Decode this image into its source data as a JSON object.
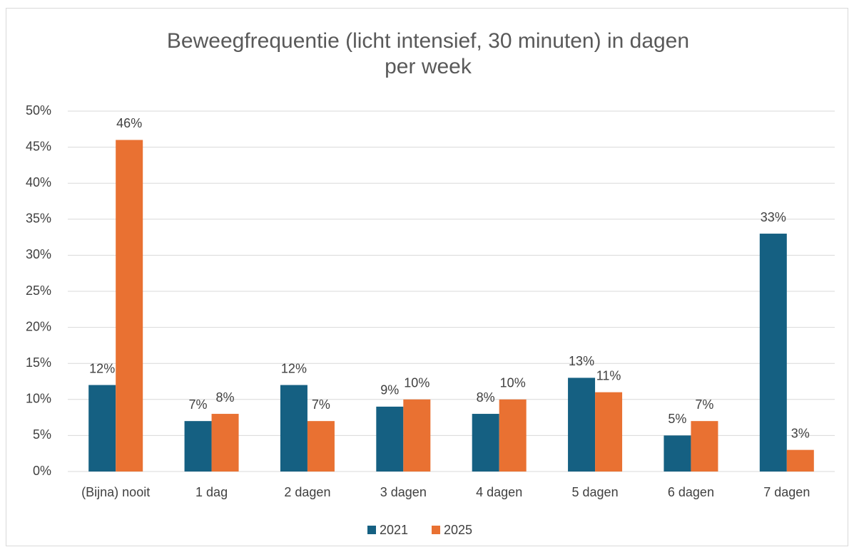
{
  "chart_data": {
    "type": "bar",
    "title": "Beweegfrequentie (licht intensief, 30 minuten) in dagen per week",
    "categories": [
      "(Bijna) nooit",
      "1 dag",
      "2 dagen",
      "3 dagen",
      "4 dagen",
      "5 dagen",
      "6 dagen",
      "7 dagen"
    ],
    "series": [
      {
        "name": "2021",
        "color": "#156082",
        "values": [
          12,
          7,
          12,
          9,
          8,
          13,
          5,
          33
        ],
        "value_labels": [
          "12%",
          "7%",
          "12%",
          "9%",
          "8%",
          "13%",
          "5%",
          "33%"
        ]
      },
      {
        "name": "2025",
        "color": "#e97132",
        "values": [
          46,
          8,
          7,
          10,
          10,
          11,
          7,
          3
        ],
        "value_labels": [
          "46%",
          "8%",
          "7%",
          "10%",
          "10%",
          "11%",
          "7%",
          "3%"
        ]
      }
    ],
    "ylim": [
      0,
      50
    ],
    "yticks": [
      {
        "value": 0,
        "label": "0%"
      },
      {
        "value": 5,
        "label": "5%"
      },
      {
        "value": 10,
        "label": "10%"
      },
      {
        "value": 15,
        "label": "15%"
      },
      {
        "value": 20,
        "label": "20%"
      },
      {
        "value": 25,
        "label": "25%"
      },
      {
        "value": 30,
        "label": "30%"
      },
      {
        "value": 35,
        "label": "35%"
      },
      {
        "value": 40,
        "label": "40%"
      },
      {
        "value": 45,
        "label": "45%"
      },
      {
        "value": 50,
        "label": "50%"
      }
    ],
    "grid": true,
    "legend": "bottom"
  }
}
